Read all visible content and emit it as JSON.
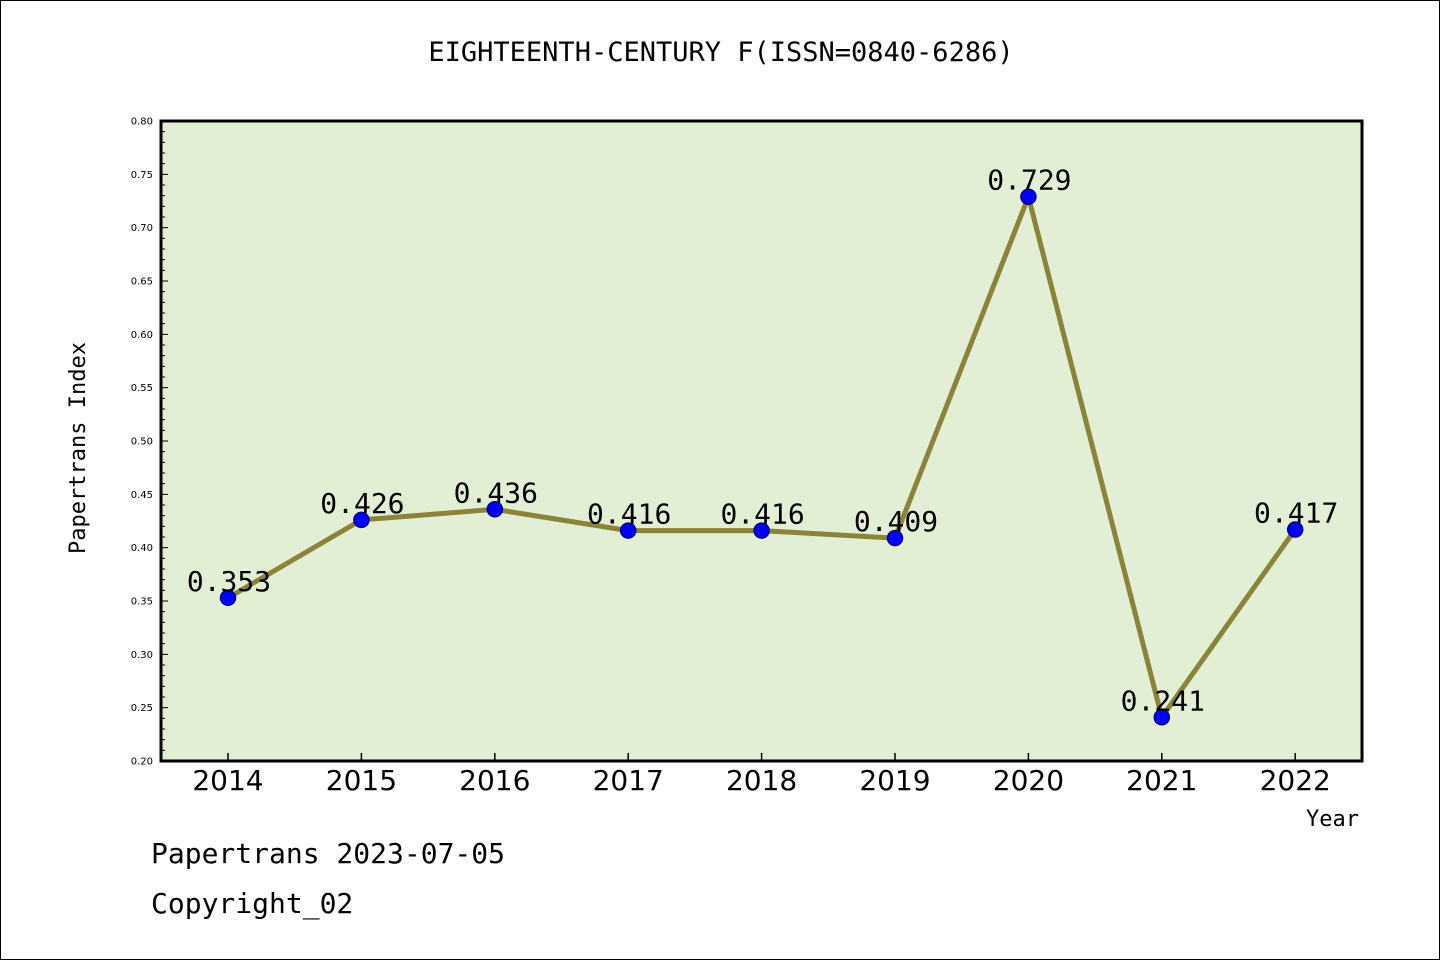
{
  "chart_data": {
    "type": "line",
    "title": "EIGHTEENTH-CENTURY F(ISSN=0840-6286)",
    "xlabel": "Year",
    "ylabel": "Papertrans Index",
    "categories": [
      "2014",
      "2015",
      "2016",
      "2017",
      "2018",
      "2019",
      "2020",
      "2021",
      "2022"
    ],
    "values": [
      0.353,
      0.426,
      0.436,
      0.416,
      0.416,
      0.409,
      0.729,
      0.241,
      0.417
    ],
    "data_labels": [
      "0.353",
      "0.426",
      "0.436",
      "0.416",
      "0.416",
      "0.409",
      "0.729",
      "0.241",
      "0.417"
    ],
    "ylim": [
      0.2,
      0.8
    ],
    "yticks": [
      "0.20",
      "0.25",
      "0.30",
      "0.35",
      "0.40",
      "0.45",
      "0.50",
      "0.55",
      "0.60",
      "0.65",
      "0.70",
      "0.75",
      "0.80"
    ],
    "grid": false,
    "colors": {
      "plot_background": "#e2efd4",
      "line": "#8b8338",
      "marker_fill": "#0000ff",
      "marker_edge": "#000080"
    }
  },
  "footer": {
    "line1": "Papertrans 2023-07-05",
    "line2": "Copyright_02"
  }
}
